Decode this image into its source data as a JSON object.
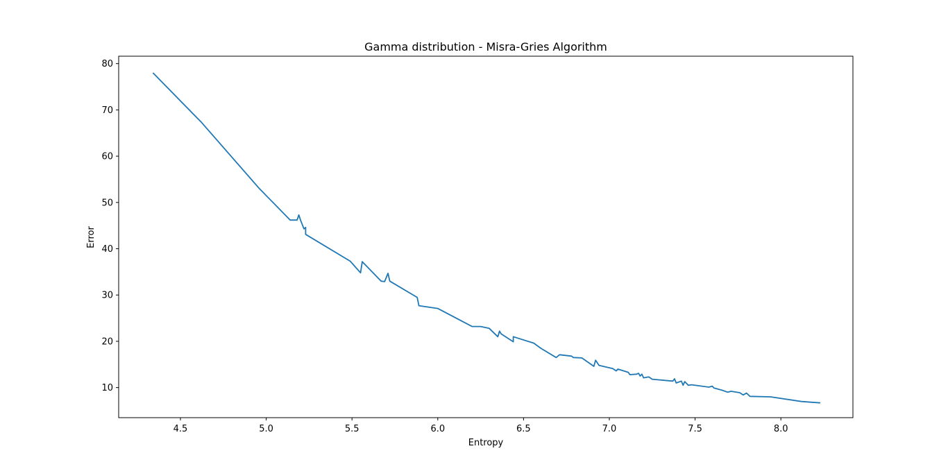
{
  "chart_data": {
    "type": "line",
    "title": "Gamma distribution - Misra-Gries Algorithm",
    "xlabel": "Entropy",
    "ylabel": "Error",
    "xlim": [
      4.14,
      8.42
    ],
    "ylim": [
      3.5,
      81.6
    ],
    "xticks": [
      {
        "value": 4.5,
        "label": "4.5"
      },
      {
        "value": 5.0,
        "label": "5.0"
      },
      {
        "value": 5.5,
        "label": "5.5"
      },
      {
        "value": 6.0,
        "label": "6.0"
      },
      {
        "value": 6.5,
        "label": "6.5"
      },
      {
        "value": 7.0,
        "label": "7.0"
      },
      {
        "value": 7.5,
        "label": "7.5"
      },
      {
        "value": 8.0,
        "label": "8.0"
      }
    ],
    "yticks": [
      {
        "value": 10,
        "label": "10"
      },
      {
        "value": 20,
        "label": "20"
      },
      {
        "value": 30,
        "label": "30"
      },
      {
        "value": 40,
        "label": "40"
      },
      {
        "value": 50,
        "label": "50"
      },
      {
        "value": 60,
        "label": "60"
      },
      {
        "value": 70,
        "label": "70"
      },
      {
        "value": 80,
        "label": "80"
      }
    ],
    "grid": false,
    "line_color": "#1f77b4",
    "series": [
      {
        "x": [
          4.34,
          4.62,
          4.96,
          5.14,
          5.18,
          5.19,
          5.2,
          5.22,
          5.23,
          5.23,
          5.49,
          5.55,
          5.56,
          5.67,
          5.69,
          5.71,
          5.72,
          5.88,
          5.89,
          6.0,
          6.2,
          6.25,
          6.3,
          6.35,
          6.36,
          6.37,
          6.44,
          6.44,
          6.56,
          6.6,
          6.69,
          6.71,
          6.78,
          6.79,
          6.84,
          6.91,
          6.92,
          6.94,
          7.02,
          7.04,
          7.05,
          7.11,
          7.12,
          7.16,
          7.17,
          7.18,
          7.19,
          7.2,
          7.23,
          7.25,
          7.37,
          7.38,
          7.39,
          7.42,
          7.43,
          7.44,
          7.46,
          7.48,
          7.58,
          7.6,
          7.61,
          7.66,
          7.69,
          7.71,
          7.76,
          7.78,
          7.8,
          7.82,
          7.94,
          8.12,
          8.23
        ],
        "y": [
          78.0,
          67.4,
          53.0,
          46.2,
          46.2,
          47.3,
          46.2,
          44.3,
          44.6,
          43.1,
          37.3,
          34.8,
          37.2,
          33.0,
          32.9,
          34.7,
          33.0,
          29.5,
          27.7,
          27.1,
          23.2,
          23.2,
          22.8,
          21.0,
          22.2,
          21.6,
          19.9,
          21.0,
          19.6,
          18.5,
          16.5,
          17.1,
          16.8,
          16.5,
          16.4,
          14.6,
          15.9,
          14.8,
          14.1,
          13.6,
          14.0,
          13.3,
          12.8,
          12.9,
          13.1,
          12.5,
          12.9,
          12.1,
          12.3,
          11.8,
          11.4,
          11.9,
          11.0,
          11.4,
          10.5,
          11.3,
          10.5,
          10.6,
          10.1,
          10.3,
          9.9,
          9.4,
          9.0,
          9.2,
          8.9,
          8.4,
          8.8,
          8.1,
          8.0,
          7.0,
          6.7
        ]
      }
    ]
  }
}
